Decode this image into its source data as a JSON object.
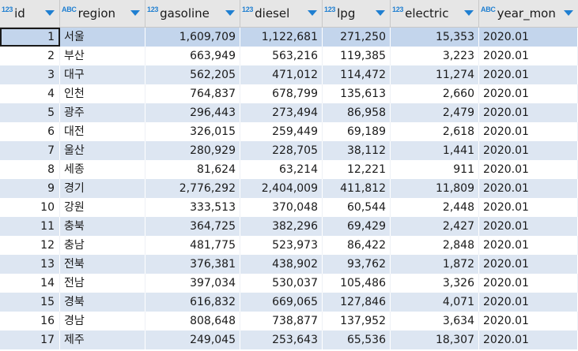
{
  "columns": [
    {
      "key": "id",
      "type_badge": "123",
      "label": "id"
    },
    {
      "key": "region",
      "type_badge": "ABC",
      "label": "region"
    },
    {
      "key": "gasoline",
      "type_badge": "123",
      "label": "gasoline"
    },
    {
      "key": "diesel",
      "type_badge": "123",
      "label": "diesel"
    },
    {
      "key": "lpg",
      "type_badge": "123",
      "label": "lpg"
    },
    {
      "key": "electric",
      "type_badge": "123",
      "label": "electric"
    },
    {
      "key": "year_mon",
      "type_badge": "ABC",
      "label": "year_mon"
    }
  ],
  "rows": [
    {
      "id": "1",
      "region": "서울",
      "gasoline": "1,609,709",
      "diesel": "1,122,681",
      "lpg": "271,250",
      "electric": "15,353",
      "year_mon": "2020.01"
    },
    {
      "id": "2",
      "region": "부산",
      "gasoline": "663,949",
      "diesel": "563,216",
      "lpg": "119,385",
      "electric": "3,223",
      "year_mon": "2020.01"
    },
    {
      "id": "3",
      "region": "대구",
      "gasoline": "562,205",
      "diesel": "471,012",
      "lpg": "114,472",
      "electric": "11,274",
      "year_mon": "2020.01"
    },
    {
      "id": "4",
      "region": "인천",
      "gasoline": "764,837",
      "diesel": "678,799",
      "lpg": "135,613",
      "electric": "2,660",
      "year_mon": "2020.01"
    },
    {
      "id": "5",
      "region": "광주",
      "gasoline": "296,443",
      "diesel": "273,494",
      "lpg": "86,958",
      "electric": "2,479",
      "year_mon": "2020.01"
    },
    {
      "id": "6",
      "region": "대전",
      "gasoline": "326,015",
      "diesel": "259,449",
      "lpg": "69,189",
      "electric": "2,618",
      "year_mon": "2020.01"
    },
    {
      "id": "7",
      "region": "울산",
      "gasoline": "280,929",
      "diesel": "228,705",
      "lpg": "38,112",
      "electric": "1,441",
      "year_mon": "2020.01"
    },
    {
      "id": "8",
      "region": "세종",
      "gasoline": "81,624",
      "diesel": "63,214",
      "lpg": "12,221",
      "electric": "911",
      "year_mon": "2020.01"
    },
    {
      "id": "9",
      "region": "경기",
      "gasoline": "2,776,292",
      "diesel": "2,404,009",
      "lpg": "411,812",
      "electric": "11,809",
      "year_mon": "2020.01"
    },
    {
      "id": "10",
      "region": "강원",
      "gasoline": "333,513",
      "diesel": "370,048",
      "lpg": "60,544",
      "electric": "2,448",
      "year_mon": "2020.01"
    },
    {
      "id": "11",
      "region": "충북",
      "gasoline": "364,725",
      "diesel": "382,296",
      "lpg": "69,429",
      "electric": "2,427",
      "year_mon": "2020.01"
    },
    {
      "id": "12",
      "region": "충남",
      "gasoline": "481,775",
      "diesel": "523,973",
      "lpg": "86,422",
      "electric": "2,848",
      "year_mon": "2020.01"
    },
    {
      "id": "13",
      "region": "전북",
      "gasoline": "376,381",
      "diesel": "438,902",
      "lpg": "93,762",
      "electric": "1,872",
      "year_mon": "2020.01"
    },
    {
      "id": "14",
      "region": "전남",
      "gasoline": "397,034",
      "diesel": "530,037",
      "lpg": "105,486",
      "electric": "3,326",
      "year_mon": "2020.01"
    },
    {
      "id": "15",
      "region": "경북",
      "gasoline": "616,832",
      "diesel": "669,065",
      "lpg": "127,846",
      "electric": "4,071",
      "year_mon": "2020.01"
    },
    {
      "id": "16",
      "region": "경남",
      "gasoline": "808,648",
      "diesel": "738,877",
      "lpg": "137,952",
      "electric": "3,634",
      "year_mon": "2020.01"
    },
    {
      "id": "17",
      "region": "제주",
      "gasoline": "249,045",
      "diesel": "253,643",
      "lpg": "65,536",
      "electric": "18,307",
      "year_mon": "2020.01"
    }
  ],
  "selected_row": 0,
  "colors": {
    "header_bg": "#e6e6e6",
    "alt_row": "#dde6f2",
    "selected_row": "#c3d5ec",
    "badge": "#1f7fd1"
  }
}
